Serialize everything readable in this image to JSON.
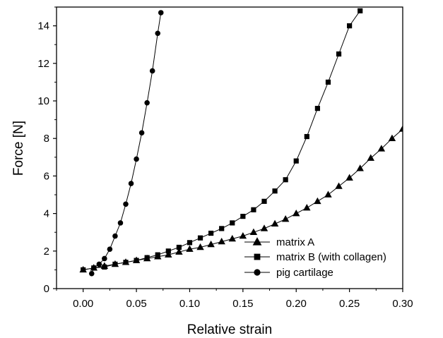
{
  "chart_data": {
    "type": "scatter",
    "xlabel": "Relative strain",
    "ylabel": "Force [N]",
    "xlim": [
      -0.025,
      0.3
    ],
    "ylim": [
      0,
      15
    ],
    "x_ticks": [
      0.0,
      0.05,
      0.1,
      0.15,
      0.2,
      0.25,
      0.3
    ],
    "x_tick_labels": [
      "0.00",
      "0.05",
      "0.10",
      "0.15",
      "0.20",
      "0.25",
      "0.30"
    ],
    "y_ticks": [
      0,
      2,
      4,
      6,
      8,
      10,
      12,
      14
    ],
    "y_tick_labels": [
      "0",
      "2",
      "4",
      "6",
      "8",
      "10",
      "12",
      "14"
    ],
    "legend_position": "bottom-right",
    "grid": false,
    "series": [
      {
        "name": "matrix A",
        "marker": "triangle",
        "color": "#000000",
        "points": [
          [
            0.0,
            1.0
          ],
          [
            0.01,
            1.1
          ],
          [
            0.02,
            1.2
          ],
          [
            0.03,
            1.3
          ],
          [
            0.04,
            1.4
          ],
          [
            0.05,
            1.5
          ],
          [
            0.06,
            1.6
          ],
          [
            0.07,
            1.7
          ],
          [
            0.08,
            1.8
          ],
          [
            0.09,
            1.95
          ],
          [
            0.1,
            2.1
          ],
          [
            0.11,
            2.2
          ],
          [
            0.12,
            2.35
          ],
          [
            0.13,
            2.5
          ],
          [
            0.14,
            2.65
          ],
          [
            0.15,
            2.8
          ],
          [
            0.16,
            3.0
          ],
          [
            0.17,
            3.2
          ],
          [
            0.18,
            3.45
          ],
          [
            0.19,
            3.7
          ],
          [
            0.2,
            4.0
          ],
          [
            0.21,
            4.3
          ],
          [
            0.22,
            4.65
          ],
          [
            0.23,
            5.0
          ],
          [
            0.24,
            5.45
          ],
          [
            0.25,
            5.9
          ],
          [
            0.26,
            6.4
          ],
          [
            0.27,
            6.95
          ],
          [
            0.28,
            7.45
          ],
          [
            0.29,
            8.0
          ],
          [
            0.3,
            8.5
          ]
        ]
      },
      {
        "name": "matrix B (with collagen)",
        "marker": "square",
        "color": "#000000",
        "points": [
          [
            0.0,
            1.0
          ],
          [
            0.01,
            1.1
          ],
          [
            0.02,
            1.15
          ],
          [
            0.03,
            1.3
          ],
          [
            0.04,
            1.4
          ],
          [
            0.05,
            1.5
          ],
          [
            0.06,
            1.65
          ],
          [
            0.07,
            1.8
          ],
          [
            0.08,
            2.0
          ],
          [
            0.09,
            2.2
          ],
          [
            0.1,
            2.45
          ],
          [
            0.11,
            2.7
          ],
          [
            0.12,
            2.95
          ],
          [
            0.13,
            3.2
          ],
          [
            0.14,
            3.5
          ],
          [
            0.15,
            3.85
          ],
          [
            0.16,
            4.2
          ],
          [
            0.17,
            4.65
          ],
          [
            0.18,
            5.2
          ],
          [
            0.19,
            5.8
          ],
          [
            0.2,
            6.8
          ],
          [
            0.21,
            8.1
          ],
          [
            0.22,
            9.6
          ],
          [
            0.23,
            11.0
          ],
          [
            0.24,
            12.5
          ],
          [
            0.25,
            14.0
          ],
          [
            0.26,
            14.8
          ]
        ]
      },
      {
        "name": "pig cartilage",
        "marker": "circle",
        "color": "#000000",
        "points": [
          [
            0.008,
            0.8
          ],
          [
            0.01,
            1.1
          ],
          [
            0.015,
            1.3
          ],
          [
            0.02,
            1.6
          ],
          [
            0.025,
            2.1
          ],
          [
            0.03,
            2.8
          ],
          [
            0.035,
            3.5
          ],
          [
            0.04,
            4.5
          ],
          [
            0.045,
            5.6
          ],
          [
            0.05,
            6.9
          ],
          [
            0.055,
            8.3
          ],
          [
            0.06,
            9.9
          ],
          [
            0.065,
            11.6
          ],
          [
            0.07,
            13.6
          ],
          [
            0.073,
            14.7
          ]
        ]
      }
    ]
  }
}
